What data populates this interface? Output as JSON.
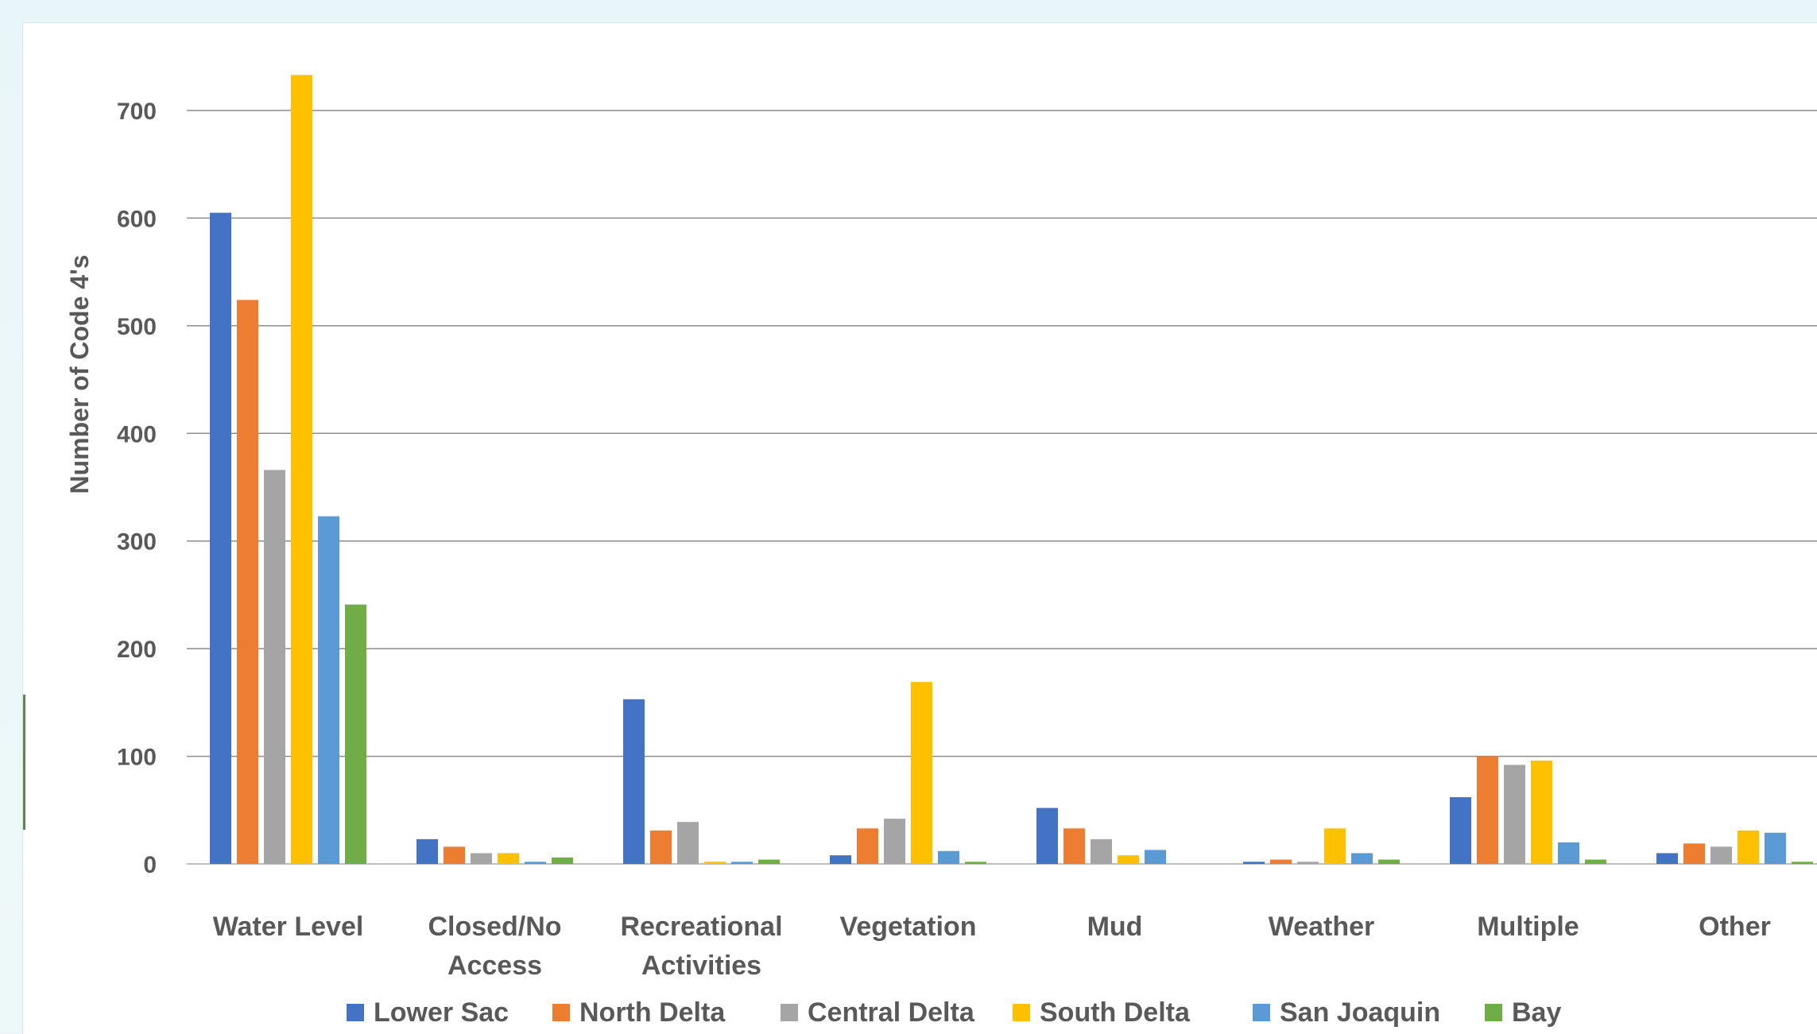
{
  "chart_data": {
    "type": "bar",
    "title": "",
    "xlabel": "",
    "ylabel": "Number of Code 4's",
    "ylim": [
      0,
      700
    ],
    "yticks": [
      0,
      100,
      200,
      300,
      400,
      500,
      600,
      700
    ],
    "grid": true,
    "legend_position": "bottom",
    "categories": [
      [
        "Water Level"
      ],
      [
        "Closed/No",
        "Access"
      ],
      [
        "Recreational",
        "Activities"
      ],
      [
        "Vegetation"
      ],
      [
        "Mud"
      ],
      [
        "Weather"
      ],
      [
        "Multiple"
      ],
      [
        "Other"
      ]
    ],
    "series": [
      {
        "name": "Lower Sac",
        "color": "#4472c4",
        "values": [
          605,
          23,
          153,
          8,
          52,
          2,
          62,
          10
        ]
      },
      {
        "name": "North Delta",
        "color": "#ed7d31",
        "values": [
          524,
          16,
          31,
          33,
          33,
          4,
          100,
          19
        ]
      },
      {
        "name": "Central Delta",
        "color": "#a5a5a5",
        "values": [
          366,
          10,
          39,
          42,
          23,
          2,
          92,
          16
        ]
      },
      {
        "name": "South Delta",
        "color": "#ffc000",
        "values": [
          733,
          10,
          2,
          169,
          8,
          33,
          96,
          31
        ]
      },
      {
        "name": "San Joaquin",
        "color": "#5b9bd5",
        "values": [
          323,
          2,
          2,
          12,
          13,
          10,
          20,
          29
        ]
      },
      {
        "name": "Bay",
        "color": "#70ad47",
        "values": [
          241,
          6,
          4,
          2,
          0,
          4,
          4,
          2
        ]
      }
    ]
  }
}
